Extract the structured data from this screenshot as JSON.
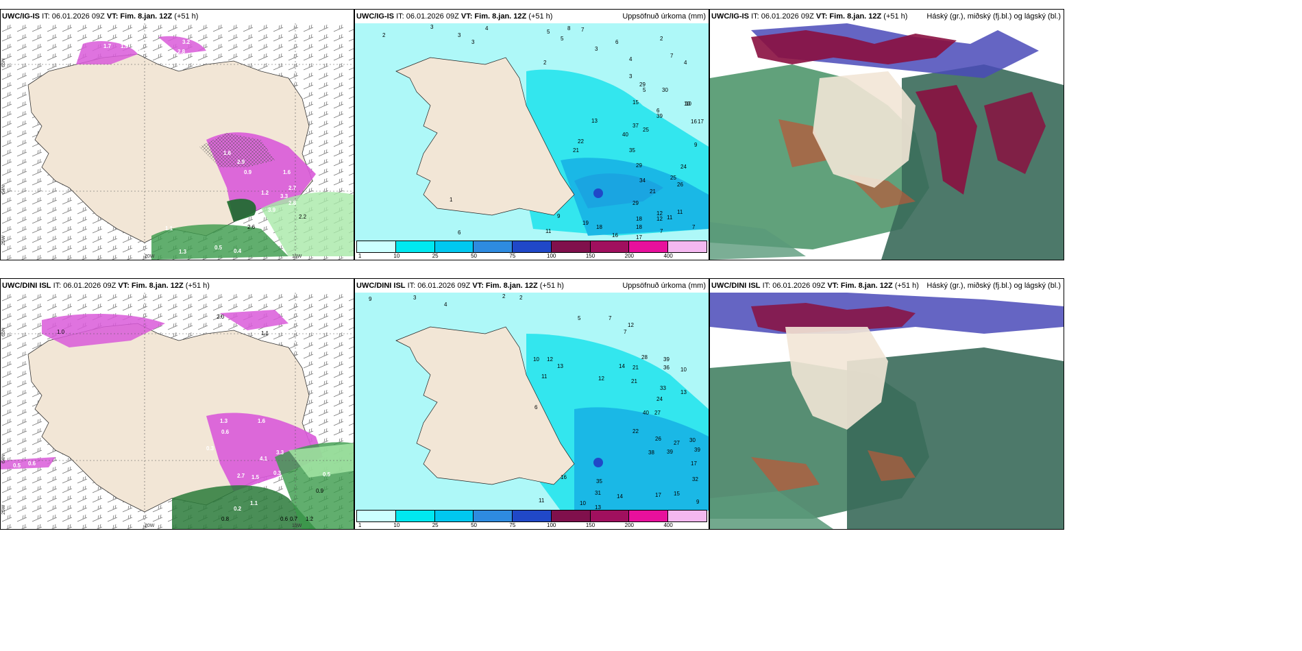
{
  "rows": [
    {
      "model": "UWC/IG-IS",
      "panels": [
        {
          "model": "UWC/IG-IS",
          "it": "IT: 06.01.2026 09Z",
          "vt_label": "VT:",
          "vt": "Fim. 8.jan. 12Z",
          "lead": "(+51 h)",
          "right_title": ""
        },
        {
          "model": "UWC/IG-IS",
          "it": "IT: 06.01.2026 09Z",
          "vt_label": "VT:",
          "vt": "Fim. 8.jan. 12Z",
          "lead": "(+51 h)",
          "right_title": "Uppsöfnuð úrkoma (mm)"
        },
        {
          "model": "UWC/IG-IS",
          "it": "IT: 06.01.2026 09Z",
          "vt_label": "VT:",
          "vt": "Fim. 8.jan. 12Z",
          "lead": "(+51 h)",
          "right_title": "Háský (gr.), miðský (fj.bl.) og lágský (bl.)"
        }
      ],
      "precip_labels": [
        "2",
        "3",
        "3",
        "4",
        "3",
        "5",
        "5",
        "8",
        "7",
        "3",
        "6",
        "4",
        "2",
        "7",
        "4",
        "3",
        "10",
        "5",
        "6",
        "9",
        "2",
        "29",
        "30",
        "10",
        "15",
        "16",
        "17",
        "39",
        "37",
        "25",
        "40",
        "35",
        "22",
        "24",
        "21",
        "25",
        "29",
        "34",
        "21",
        "26",
        "29",
        "18",
        "12",
        "11",
        "11",
        "18",
        "16",
        "17",
        "7",
        "7",
        "6",
        "1",
        "9",
        "11",
        "19",
        "18",
        "12",
        "13"
      ],
      "temp_labels": [
        "1.7",
        "1.9",
        "1.2",
        "3.2",
        "2.8",
        "1.6",
        "2.9",
        "0.9",
        "1.6",
        "2.7",
        "1.2",
        "3.3",
        "3.9",
        "2.8",
        "2.6",
        "2.2",
        "0.5",
        "0.4",
        "1.3",
        "1.1"
      ]
    },
    {
      "model": "UWC/DINI ISL",
      "panels": [
        {
          "model": "UWC/DINI ISL",
          "it": "IT: 06.01.2026 09Z",
          "vt_label": "VT:",
          "vt": "Fim. 8.jan. 12Z",
          "lead": "(+51 h)",
          "right_title": ""
        },
        {
          "model": "UWC/DINI ISL",
          "it": "IT: 06.01.2026 09Z",
          "vt_label": "VT:",
          "vt": "Fim. 8.jan. 12Z",
          "lead": "(+51 h)",
          "right_title": "Uppsöfnuð úrkoma (mm)"
        },
        {
          "model": "UWC/DINI ISL",
          "it": "IT: 06.01.2026 09Z",
          "vt_label": "VT:",
          "vt": "Fim. 8.jan. 12Z",
          "lead": "(+51 h)",
          "right_title": "Háský (gr.), miðský (fj.bl.) og lágský (bl.)"
        }
      ],
      "precip_labels": [
        "9",
        "3",
        "4",
        "2",
        "2",
        "5",
        "7",
        "7",
        "12",
        "10",
        "12",
        "13",
        "11",
        "14",
        "21",
        "28",
        "39",
        "36",
        "10",
        "12",
        "21",
        "33",
        "13",
        "24",
        "40",
        "27",
        "22",
        "26",
        "27",
        "30",
        "38",
        "39",
        "39",
        "17",
        "32",
        "16",
        "35",
        "31",
        "10",
        "14",
        "17",
        "15",
        "13",
        "11",
        "9",
        "6"
      ],
      "temp_labels": [
        "2.0",
        "1.0",
        "1.1",
        "1.3",
        "0.6",
        "1.6",
        "0.3",
        "4.1",
        "3.3",
        "2.7",
        "1.5",
        "0.3",
        "0.5",
        "0.9",
        "1.1",
        "0.2",
        "0.8",
        "0.6",
        "0.7",
        "1.2",
        "0.5",
        "0.6"
      ]
    }
  ],
  "lon_labels": [
    "20W",
    "15W"
  ],
  "lat_labels": [
    "65N",
    "64N",
    "25W"
  ],
  "colorbar": {
    "ticks": [
      "1",
      "10",
      "25",
      "50",
      "75",
      "100",
      "150",
      "200",
      "400"
    ],
    "colors": [
      "#ccffff",
      "#00e8f0",
      "#00c8f0",
      "#2e8be0",
      "#2048c8",
      "#80104c",
      "#a0105e",
      "#e8109c",
      "#f4b8f0"
    ]
  },
  "map_colors": {
    "land": "#f2e6d6",
    "ocean_light": "#aef8f8",
    "ocean_cyan": "#33e6ee",
    "ocean_blue": "#1ab8e6",
    "magenta": "#d95ad9",
    "green": "#3a9a4a",
    "lightgreen": "#a8e8a8",
    "darkred": "#8a1040",
    "purple": "#4a4ab8",
    "seagreen": "#3a6a5a"
  }
}
